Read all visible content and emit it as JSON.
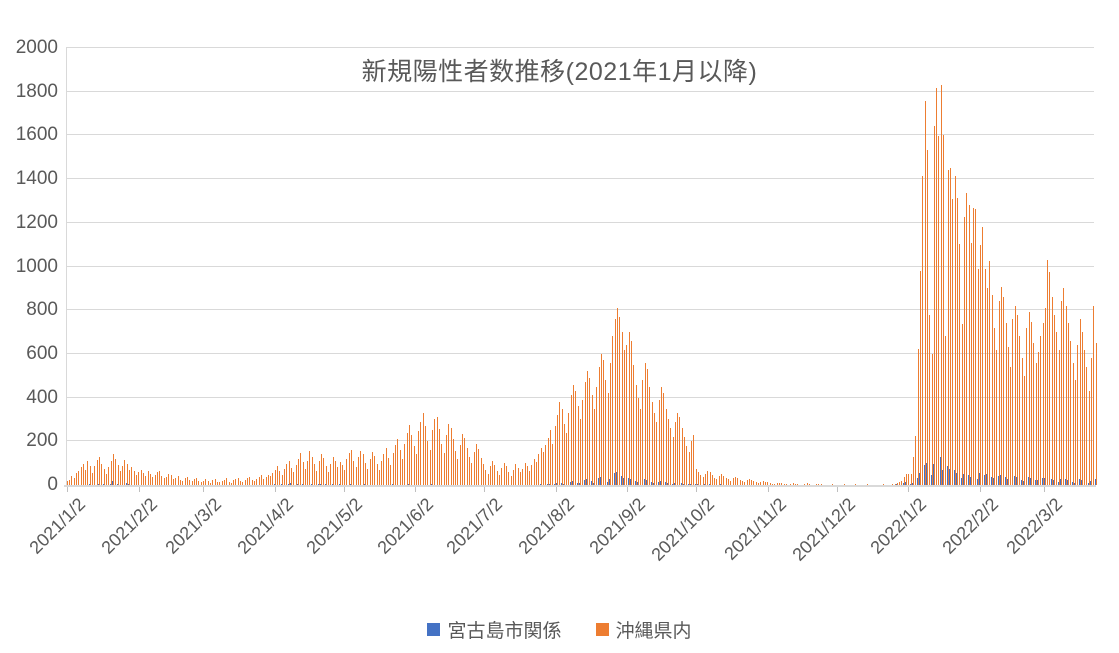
{
  "title": "新規陽性者数推移(2021年1月以降)",
  "legend": {
    "miyako_label": "宮古島市関係",
    "okinawa_label": "沖縄県内"
  },
  "colors": {
    "miyako": "#4472c4",
    "okinawa": "#ed7d31",
    "gridline": "#d9d9d9",
    "axis_text": "#595959"
  },
  "chart_data": {
    "type": "bar",
    "title": "新規陽性者数推移(2021年1月以降)",
    "xlabel": "",
    "ylabel": "",
    "ylim": [
      0,
      2000
    ],
    "y_ticks": [
      0,
      200,
      400,
      600,
      800,
      1000,
      1200,
      1400,
      1600,
      1800,
      2000
    ],
    "grid": true,
    "legend_position": "bottom",
    "x_is_daily_dates": true,
    "x_start_date": "2021/1/2",
    "x_end_date": "2022/3/23",
    "x_tick_labels": [
      "2021/1/2",
      "2021/2/2",
      "2021/3/2",
      "2021/4/2",
      "2021/5/2",
      "2021/6/2",
      "2021/7/2",
      "2021/8/2",
      "2021/9/2",
      "2021/10/2",
      "2021/11/2",
      "2021/12/2",
      "2022/1/2",
      "2022/2/2",
      "2022/3/2"
    ],
    "x_tick_day_index": [
      0,
      31,
      59,
      90,
      120,
      151,
      181,
      212,
      243,
      273,
      304,
      334,
      365,
      396,
      424
    ],
    "series": [
      {
        "name": "宮古島市関係",
        "color": "#4472c4",
        "values": [
          0,
          0,
          0,
          0,
          0,
          1,
          0,
          2,
          1,
          0,
          3,
          1,
          0,
          2,
          5,
          8,
          3,
          1,
          12,
          6,
          18,
          9,
          4,
          2,
          14,
          22,
          8,
          3,
          5,
          2,
          2,
          4,
          1,
          0,
          3,
          1,
          0,
          2,
          0,
          1,
          3,
          0,
          0,
          1,
          2,
          0,
          0,
          1,
          0,
          0,
          2,
          0,
          1,
          0,
          0,
          1,
          0,
          0,
          0,
          1,
          0,
          0,
          2,
          0,
          0,
          1,
          0,
          0,
          0,
          1,
          0,
          0,
          0,
          2,
          0,
          0,
          1,
          0,
          0,
          0,
          1,
          0,
          0,
          2,
          0,
          0,
          1,
          0,
          0,
          1,
          3,
          0,
          2,
          5,
          1,
          0,
          3,
          7,
          2,
          0,
          4,
          8,
          3,
          1,
          5,
          10,
          4,
          2,
          0,
          6,
          3,
          1,
          4,
          0,
          2,
          5,
          1,
          0,
          3,
          1,
          0,
          2,
          1,
          3,
          0,
          1,
          2,
          0,
          1,
          3,
          1,
          0,
          2,
          1,
          0,
          1,
          2,
          4,
          1,
          0,
          2,
          3,
          1,
          2,
          0,
          1,
          3,
          2,
          4,
          2,
          2,
          1,
          3,
          4,
          2,
          1,
          0,
          2,
          3,
          4,
          2,
          1,
          0,
          1,
          2,
          3,
          1,
          0,
          1,
          2,
          1,
          0,
          1,
          2,
          1,
          0,
          1,
          1,
          0,
          1,
          1,
          0,
          1,
          2,
          1,
          0,
          0,
          1,
          2,
          1,
          0,
          0,
          1,
          1,
          0,
          0,
          1,
          1,
          2,
          1,
          0,
          1,
          2,
          1,
          2,
          3,
          2,
          3,
          4,
          5,
          3,
          5,
          8,
          12,
          10,
          6,
          4,
          9,
          15,
          20,
          16,
          11,
          7,
          14,
          22,
          28,
          24,
          17,
          10,
          19,
          30,
          38,
          33,
          25,
          15,
          28,
          42,
          55,
          60,
          50,
          40,
          32,
          30,
          34,
          28,
          22,
          18,
          14,
          12,
          20,
          26,
          22,
          17,
          13,
          10,
          8,
          15,
          20,
          17,
          12,
          9,
          7,
          5,
          10,
          13,
          11,
          8,
          6,
          4,
          3,
          6,
          8,
          5,
          4,
          3,
          2,
          3,
          4,
          3,
          2,
          1,
          1,
          2,
          3,
          2,
          1,
          1,
          0,
          1,
          2,
          1,
          1,
          0,
          0,
          1,
          1,
          1,
          0,
          0,
          0,
          1,
          1,
          0,
          0,
          0,
          1,
          0,
          0,
          1,
          0,
          0,
          0,
          0,
          1,
          0,
          0,
          0,
          0,
          0,
          1,
          0,
          0,
          0,
          0,
          0,
          1,
          0,
          0,
          0,
          0,
          0,
          0,
          0,
          0,
          0,
          0,
          1,
          0,
          0,
          0,
          0,
          1,
          0,
          0,
          0,
          0,
          0,
          0,
          0,
          0,
          0,
          0,
          0,
          1,
          0,
          0,
          1,
          2,
          1,
          3,
          4,
          6,
          10,
          14,
          2,
          3,
          8,
          15,
          30,
          55,
          70,
          90,
          100,
          60,
          45,
          95,
          110,
          80,
          128,
          70,
          40,
          85,
          75,
          60,
          68,
          55,
          42,
          30,
          50,
          58,
          45,
          38,
          44,
          35,
          28,
          55,
          60,
          48,
          52,
          45,
          38,
          30,
          25,
          42,
          48,
          44,
          36,
          28,
          22,
          35,
          40,
          38,
          30,
          24,
          20,
          32,
          36,
          33,
          27,
          22,
          25,
          29,
          33,
          30,
          38,
          35,
          28,
          24,
          20,
          16,
          28,
          32,
          27,
          22,
          18,
          14,
          10,
          20,
          26,
          22,
          18,
          14,
          10,
          17,
          23,
          27
        ]
      },
      {
        "name": "沖縄県内",
        "color": "#ed7d31",
        "values": [
          18,
          25,
          41,
          30,
          57,
          66,
          81,
          94,
          70,
          110,
          85,
          55,
          88,
          114,
          130,
          98,
          75,
          50,
          82,
          108,
          140,
          120,
          92,
          65,
          86,
          113,
          95,
          70,
          81,
          62,
          48,
          60,
          70,
          55,
          40,
          65,
          52,
          38,
          45,
          58,
          66,
          42,
          30,
          36,
          50,
          44,
          28,
          33,
          40,
          25,
          20,
          30,
          35,
          22,
          17,
          26,
          30,
          19,
          14,
          20,
          26,
          17,
          10,
          22,
          28,
          15,
          12,
          18,
          24,
          30,
          16,
          11,
          21,
          27,
          33,
          20,
          14,
          25,
          31,
          38,
          23,
          17,
          29,
          36,
          44,
          27,
          35,
          48,
          41,
          55,
          70,
          88,
          62,
          46,
          75,
          95,
          110,
          80,
          58,
          90,
          120,
          146,
          105,
          72,
          112,
          155,
          130,
          98,
          66,
          108,
          140,
          125,
          86,
          60,
          95,
          128,
          112,
          82,
          104,
          92,
          70,
          118,
          146,
          160,
          112,
          84,
          128,
          155,
          140,
          100,
          74,
          120,
          150,
          135,
          96,
          68,
          110,
          142,
          168,
          124,
          90,
          146,
          185,
          210,
          160,
          120,
          190,
          240,
          275,
          230,
          180,
          140,
          245,
          290,
          330,
          270,
          200,
          160,
          250,
          300,
          310,
          255,
          190,
          145,
          230,
          280,
          260,
          210,
          155,
          120,
          185,
          235,
          215,
          170,
          130,
          100,
          150,
          190,
          165,
          125,
          95,
          70,
          52,
          88,
          110,
          92,
          66,
          45,
          78,
          100,
          85,
          60,
          42,
          70,
          95,
          80,
          58,
          75,
          102,
          88,
          64,
          90,
          120,
          105,
          140,
          170,
          150,
          185,
          215,
          250,
          190,
          270,
          320,
          380,
          350,
          280,
          240,
          330,
          410,
          460,
          430,
          360,
          300,
          390,
          470,
          520,
          490,
          410,
          350,
          450,
          540,
          600,
          570,
          480,
          420,
          560,
          680,
          760,
          810,
          770,
          700,
          620,
          640,
          700,
          660,
          550,
          460,
          400,
          350,
          480,
          560,
          530,
          450,
          380,
          330,
          290,
          390,
          450,
          420,
          350,
          300,
          260,
          220,
          290,
          330,
          310,
          260,
          220,
          180,
          150,
          200,
          230,
          75,
          60,
          48,
          38,
          52,
          66,
          58,
          44,
          34,
          28,
          40,
          50,
          42,
          33,
          26,
          20,
          30,
          38,
          31,
          24,
          18,
          14,
          22,
          28,
          23,
          17,
          12,
          9,
          15,
          20,
          16,
          12,
          9,
          6,
          4,
          8,
          11,
          7,
          5,
          3,
          2,
          6,
          9,
          5,
          3,
          2,
          1,
          4,
          7,
          4,
          2,
          1,
          3,
          5,
          3,
          2,
          1,
          0,
          2,
          4,
          2,
          1,
          0,
          2,
          3,
          1,
          0,
          0,
          2,
          4,
          2,
          1,
          0,
          1,
          3,
          2,
          1,
          0,
          0,
          2,
          1,
          3,
          1,
          0,
          2,
          5,
          3,
          8,
          14,
          20,
          35,
          50,
          52,
          51,
          130,
          225,
          623,
          981,
          1414,
          1759,
          1533,
          779,
          600,
          1644,
          1817,
          1596,
          1829,
          1604,
          683,
          1443,
          1450,
          1309,
          1414,
          1313,
          1102,
          735,
          1227,
          1336,
          1282,
          1106,
          1268,
          1262,
          990,
          1100,
          1180,
          990,
          900,
          1025,
          870,
          720,
          620,
          840,
          905,
          860,
          740,
          630,
          540,
          760,
          820,
          780,
          680,
          580,
          500,
          720,
          790,
          745,
          650,
          560,
          610,
          680,
          740,
          810,
          1030,
          975,
          860,
          780,
          700,
          620,
          840,
          900,
          820,
          740,
          660,
          560,
          480,
          640,
          760,
          700,
          620,
          540,
          430,
          580,
          820,
          650
        ]
      }
    ]
  }
}
